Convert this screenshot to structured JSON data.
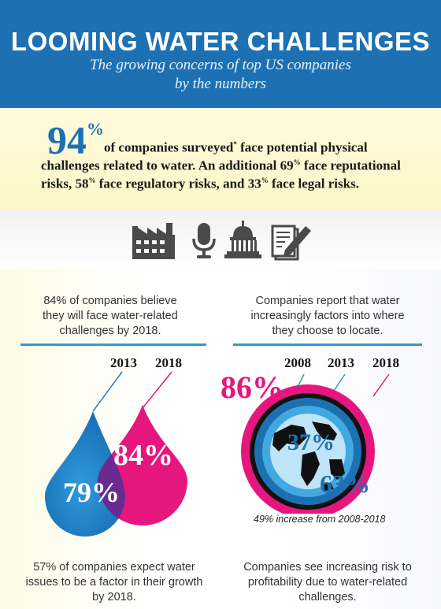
{
  "header": {
    "title": "LOOMING WATER CHALLENGES",
    "subtitle_line1": "The growing concerns of top US companies",
    "subtitle_line2": "by the numbers"
  },
  "headline_stat": {
    "value": "94",
    "percent": "%",
    "line1": "of companies surveyed",
    "asterisk": "*",
    "line1_end": " face potential physical",
    "line2_start": "challenges related to water. An additional 69",
    "line2_end": " face reputational",
    "line3_a": "risks, 58",
    "line3_b": " face regulatory risks, and 33",
    "line3_c": " face legal risks."
  },
  "icons": [
    "factory-icon",
    "microphone-icon",
    "capitol-icon",
    "document-signing-icon"
  ],
  "left_panel": {
    "caption_line1": "84% of companies believe",
    "caption_line2": "they will face water-related",
    "caption_line3": "challenges by 2018.",
    "year_a": "2013",
    "year_b": "2018",
    "value_2013": "79%",
    "value_2018": "84%",
    "color_2013": "#1d7fc4",
    "color_2018": "#e6167f"
  },
  "right_panel": {
    "caption_line1": "Companies report that water",
    "caption_line2": "increasingly factors into where",
    "caption_line3": "they choose to locate.",
    "year_a": "2008",
    "year_b": "2013",
    "year_c": "2018",
    "value_2008": "37%",
    "value_2013": "63%",
    "value_2018": "86%",
    "footnote": "49% increase from 2008-2018"
  },
  "bottom": {
    "left_line1": "57% of companies expect water",
    "left_line2": "issues to be a factor in their growth",
    "left_line3": "by 2018.",
    "right_line1": "Companies see increasing risk to",
    "right_line2": "profitability due to water-related",
    "right_line3": "challenges."
  }
}
